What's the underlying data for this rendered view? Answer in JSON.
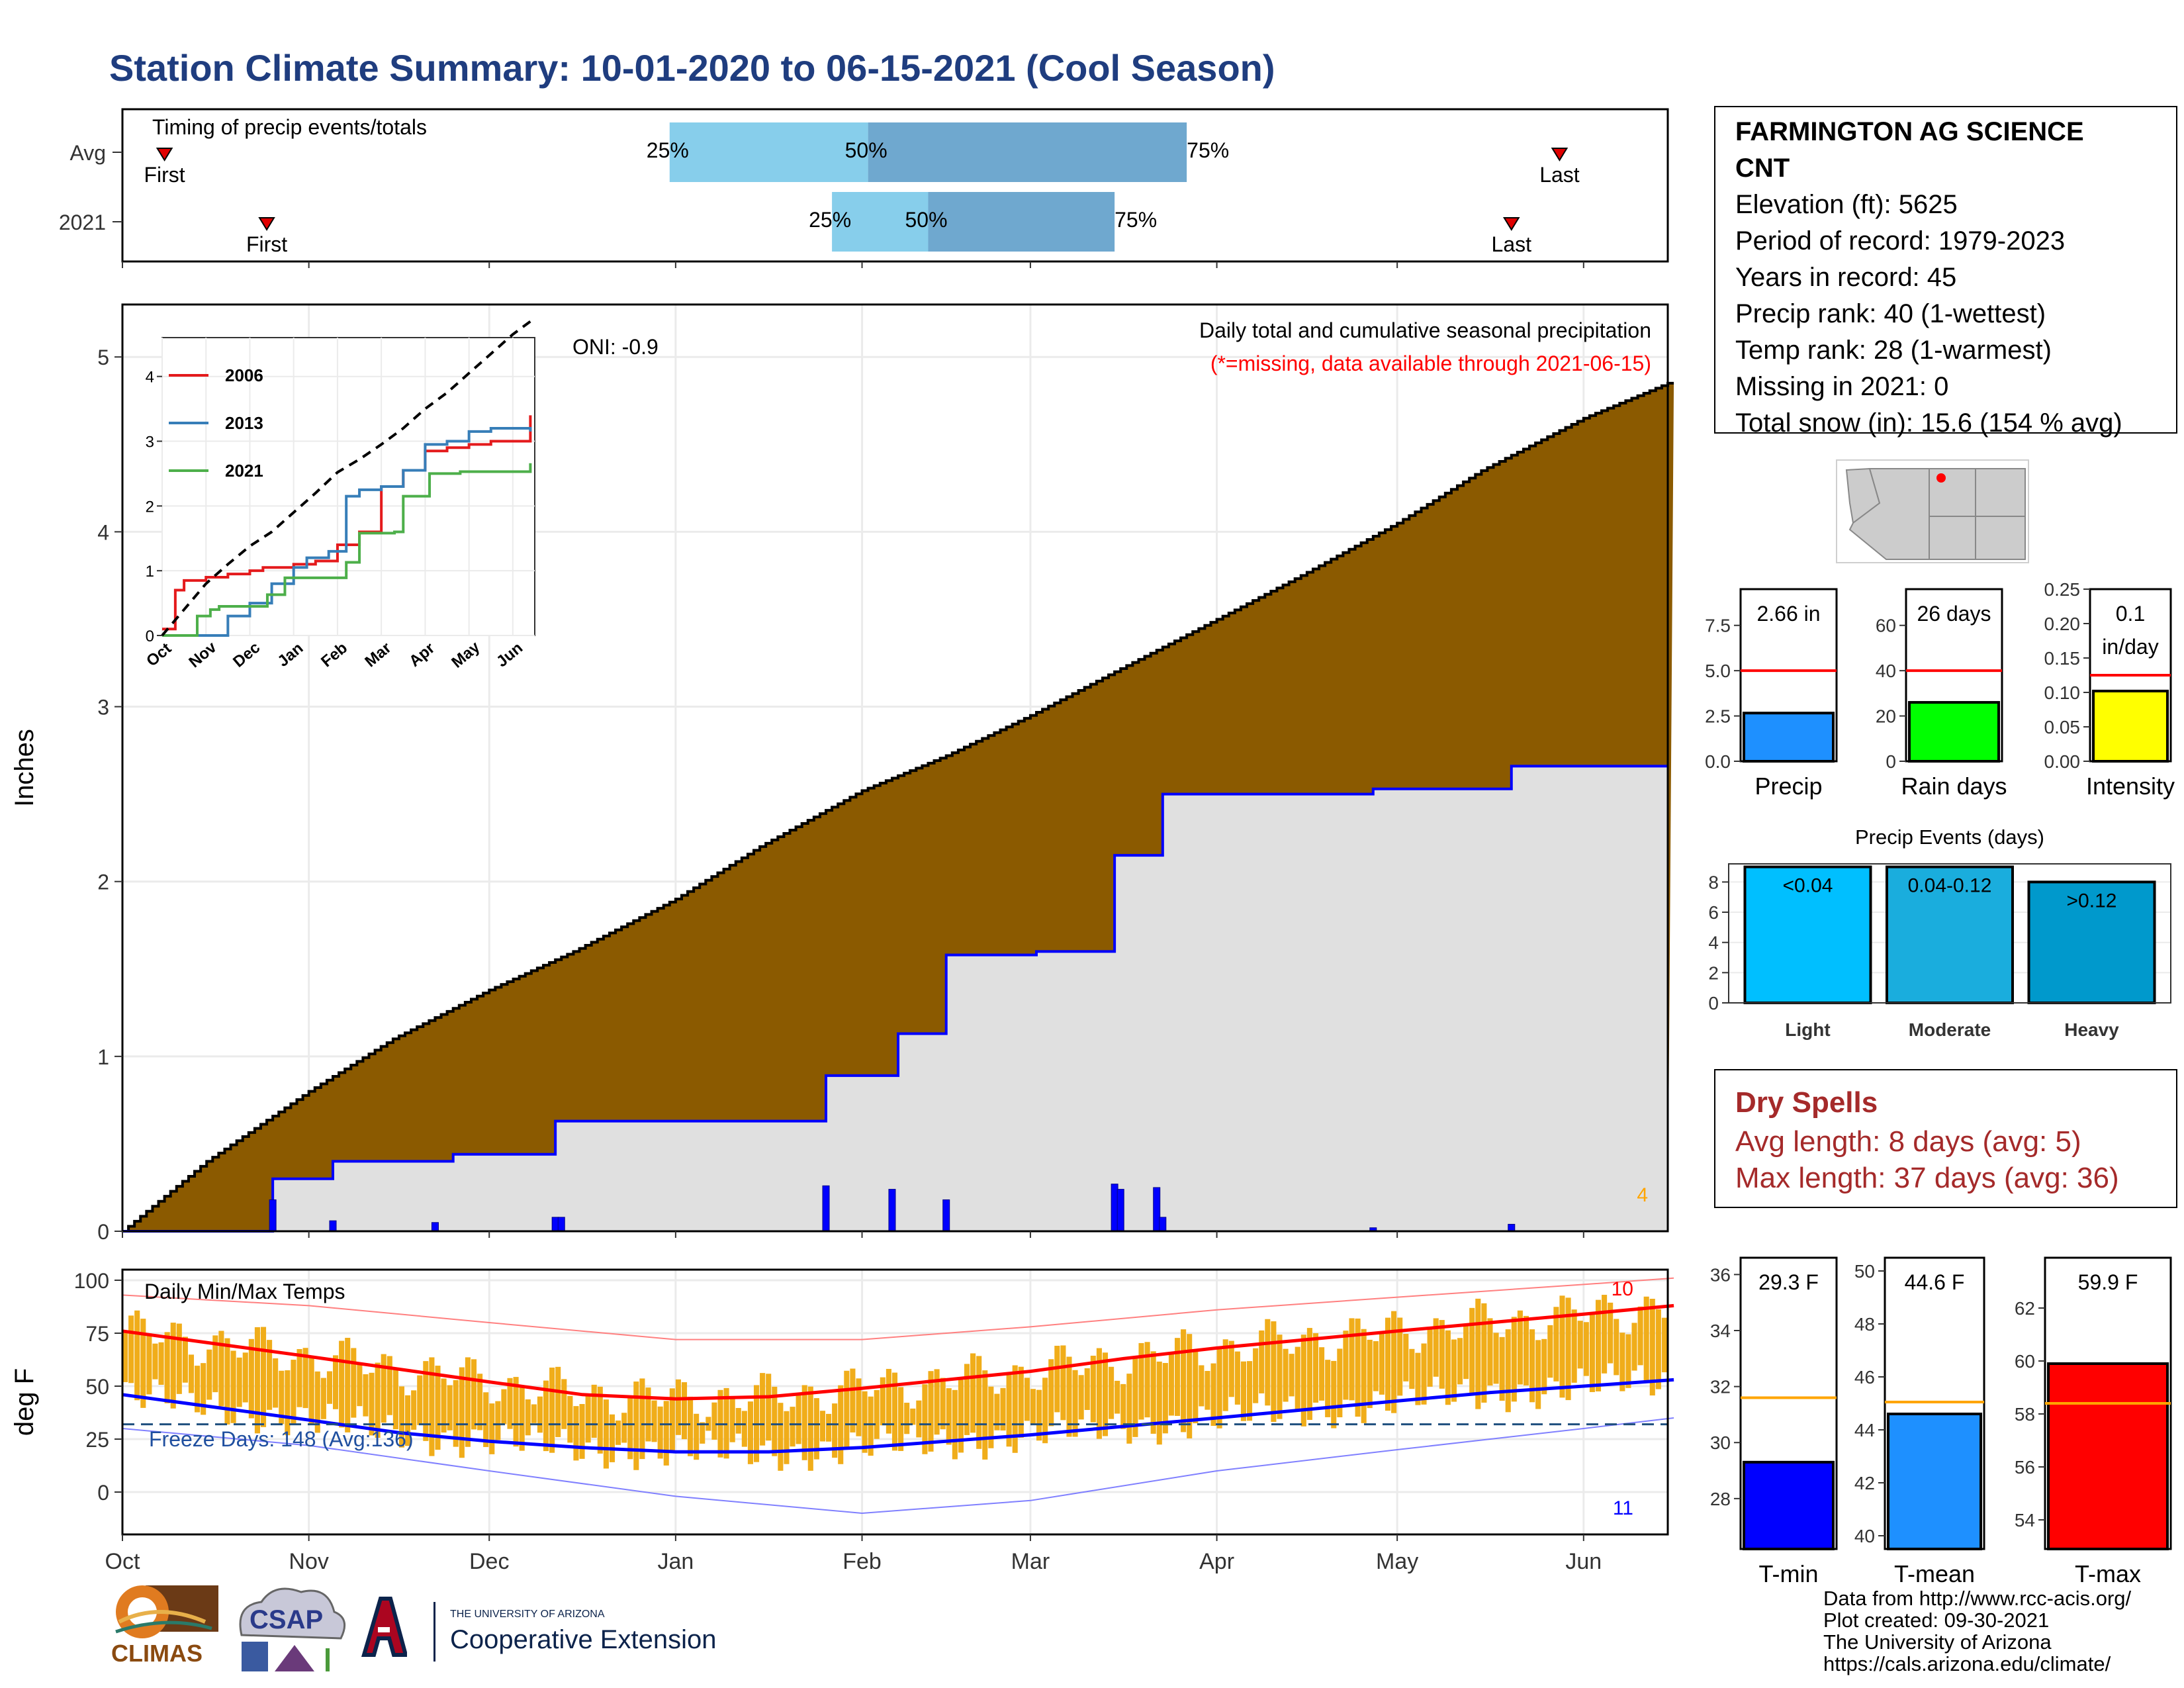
{
  "title": "Station Climate Summary: 10-01-2020 to 06-15-2021 (Cool Season)",
  "station": {
    "name_line1": "FARMINGTON AG SCIENCE",
    "name_line2": "CNT",
    "lines": [
      "Elevation (ft): 5625",
      "Period of record: 1979-2023",
      "Years in record: 45",
      "Precip rank: 40 (1-wettest)",
      "Temp rank: 28 (1-warmest)",
      "Missing in 2021: 0",
      "Total snow (in): 15.6 (154 % avg)"
    ]
  },
  "dry_spells": {
    "heading": "Dry Spells",
    "avg_length": "Avg length: 8 days (avg: 5)",
    "max_length": "Max length: 37 days (avg: 36)"
  },
  "credits": [
    "Data from http://www.rcc-acis.org/",
    "Plot created: 09-30-2021",
    "The University of Arizona",
    "https://cals.arizona.edu/climate/"
  ],
  "logos": {
    "climas": "CLIMAS",
    "csap": "CSAP",
    "ua_small": "THE UNIVERSITY OF ARIZONA",
    "ua_big": "Cooperative Extension"
  },
  "colors": {
    "title": "#1f3d7f",
    "avg_precip_fill": "#8b5a00",
    "season_precip_fill": "#e0e0e0",
    "season_line": "#0000ff",
    "quartile_light": "#87ceeb",
    "quartile_dark": "#6fa8cf",
    "dry_spells": "#a52a2a",
    "temp_bar": "#f0ad1a",
    "tmax_line": "#ff0000",
    "tmin_line": "#0000ff"
  },
  "chart_data": [
    {
      "type": "timeline",
      "title": "Timing of precip events/totals",
      "x_range": [
        "Oct",
        "Jun"
      ],
      "rows": [
        {
          "label": "Avg",
          "first": "First",
          "last": "Last",
          "first_date": "2020-10-08",
          "last_date": "2021-05-28",
          "q25": "2020-12-31",
          "q50": "2021-02-02",
          "q75": "2021-03-27",
          "q25_label": "25%",
          "q50_label": "50%",
          "q75_label": "75%"
        },
        {
          "label": "2021",
          "first": "First",
          "last": "Last",
          "first_date": "2020-10-25",
          "last_date": "2021-05-20",
          "q25": "2021-01-27",
          "q50": "2021-02-12",
          "q75": "2021-03-15",
          "q25_label": "25%",
          "q50_label": "50%",
          "q75_label": "75%"
        }
      ]
    },
    {
      "type": "area",
      "title": "Daily total and cumulative seasonal precipitation",
      "subtitle": "(*=missing, data available through 2021-06-15)",
      "annotation": "ONI: -0.9",
      "corner_label": "4",
      "ylabel": "Inches",
      "ylim": [
        0,
        5.3
      ],
      "y_ticks": [
        "0",
        "1",
        "2",
        "3",
        "4",
        "5"
      ],
      "x_ticks": [
        "Oct",
        "Nov",
        "Dec",
        "Jan",
        "Feb",
        "Mar",
        "Apr",
        "May",
        "Jun"
      ],
      "avg_cumulative": {
        "dates": [
          "2020-10-01",
          "2020-10-15",
          "2020-11-01",
          "2020-11-15",
          "2020-12-01",
          "2020-12-15",
          "2021-01-01",
          "2021-01-15",
          "2021-02-01",
          "2021-02-15",
          "2021-03-01",
          "2021-03-15",
          "2021-04-01",
          "2021-04-15",
          "2021-05-01",
          "2021-05-15",
          "2021-06-01",
          "2021-06-15"
        ],
        "values": [
          0,
          0.4,
          0.8,
          1.1,
          1.38,
          1.6,
          1.9,
          2.2,
          2.52,
          2.72,
          2.95,
          3.2,
          3.5,
          3.75,
          4.05,
          4.35,
          4.65,
          4.85
        ]
      },
      "season_cumulative": {
        "dates": [
          "2020-10-01",
          "2020-10-26",
          "2020-11-05",
          "2020-11-25",
          "2020-12-12",
          "2021-01-26",
          "2021-02-07",
          "2021-02-15",
          "2021-03-02",
          "2021-03-15",
          "2021-03-23",
          "2021-04-27",
          "2021-05-20",
          "2021-06-15"
        ],
        "values": [
          0,
          0.3,
          0.4,
          0.44,
          0.63,
          0.89,
          1.13,
          1.58,
          1.6,
          2.15,
          2.5,
          2.53,
          2.66,
          2.66
        ]
      },
      "daily_bars": {
        "dates": [
          "2020-10-26",
          "2020-11-05",
          "2020-11-22",
          "2020-12-12",
          "2020-12-13",
          "2021-01-26",
          "2021-02-06",
          "2021-02-15",
          "2021-03-15",
          "2021-03-16",
          "2021-03-22",
          "2021-03-23",
          "2021-04-27",
          "2021-05-20"
        ],
        "values": [
          0.18,
          0.06,
          0.05,
          0.08,
          0.08,
          0.26,
          0.24,
          0.18,
          0.27,
          0.24,
          0.25,
          0.08,
          0.02,
          0.04
        ]
      },
      "inset": {
        "type": "line",
        "ylim": [
          0,
          4.6
        ],
        "y_ticks": [
          "0",
          "1",
          "2",
          "3",
          "4"
        ],
        "x_ticks": [
          "Oct",
          "Nov",
          "Dec",
          "Jan",
          "Feb",
          "Mar",
          "Apr",
          "May",
          "Jun"
        ],
        "series": [
          {
            "name": "2006",
            "color": "#e41a1c",
            "months": [
              0,
              0.3,
              0.5,
              1,
              1.5,
              2,
              2.3,
              2.5,
              3,
              3.5,
              4,
              4.5,
              5,
              5.5,
              6,
              6.5,
              7,
              7.5,
              8.4
            ],
            "values": [
              0.1,
              0.7,
              0.85,
              0.9,
              0.95,
              1.0,
              1.05,
              1.05,
              1.1,
              1.15,
              1.4,
              1.6,
              2.3,
              2.55,
              2.85,
              2.9,
              2.95,
              3.0,
              3.4
            ]
          },
          {
            "name": "2013",
            "color": "#377eb8",
            "months": [
              0,
              1,
              1.5,
              2,
              2.5,
              3,
              3.3,
              3.8,
              4.2,
              4.5,
              5,
              5.5,
              6,
              6.5,
              7,
              7.5,
              8.4
            ],
            "values": [
              0,
              0,
              0.3,
              0.5,
              0.8,
              1.05,
              1.2,
              1.3,
              2.15,
              2.25,
              2.3,
              2.55,
              2.95,
              3.0,
              3.15,
              3.2,
              3.15
            ]
          },
          {
            "name": "2021",
            "color": "#4daf4a",
            "months": [
              0,
              0.8,
              1.1,
              1.3,
              2.4,
              2.8,
              3.2,
              4.2,
              4.5,
              5.3,
              5.5,
              6.1,
              6.8,
              8.4
            ],
            "values": [
              0,
              0.3,
              0.4,
              0.45,
              0.63,
              0.89,
              0.89,
              1.13,
              1.58,
              1.6,
              2.15,
              2.5,
              2.53,
              2.66
            ]
          }
        ],
        "average": {
          "months": [
            0,
            0.5,
            1,
            1.5,
            2,
            2.5,
            3,
            3.5,
            4,
            4.5,
            5,
            5.5,
            6,
            6.5,
            7,
            7.5,
            8,
            8.4
          ],
          "values": [
            0,
            0.4,
            0.8,
            1.1,
            1.38,
            1.6,
            1.9,
            2.2,
            2.52,
            2.72,
            2.95,
            3.2,
            3.5,
            3.75,
            4.05,
            4.35,
            4.65,
            4.85
          ]
        }
      }
    },
    {
      "type": "line",
      "title": "Daily Min/Max Temps",
      "ylabel": "deg F",
      "ylim": [
        -20,
        105
      ],
      "y_ticks": [
        "0",
        "25",
        "50",
        "75",
        "100"
      ],
      "x_ticks": [
        "Oct",
        "Nov",
        "Dec",
        "Jan",
        "Feb",
        "Mar",
        "Apr",
        "May",
        "Jun"
      ],
      "freeze_label": "Freeze Days: 148 (Avg:136)",
      "freeze_line": 32,
      "record_max_label": "10",
      "record_min_label": "11",
      "avg_tmax": {
        "months": [
          0,
          0.5,
          1,
          1.5,
          2,
          2.5,
          3,
          3.5,
          4,
          4.5,
          5,
          5.5,
          6,
          6.5,
          7,
          7.5,
          8,
          8.5
        ],
        "values": [
          76,
          70,
          64,
          58,
          52,
          46,
          44,
          45,
          49,
          53,
          57,
          63,
          68,
          72,
          76,
          80,
          84,
          88
        ]
      },
      "avg_tmin": {
        "months": [
          0,
          0.5,
          1,
          1.5,
          2,
          2.5,
          3,
          3.5,
          4,
          4.5,
          5,
          5.5,
          6,
          6.5,
          7,
          7.5,
          8,
          8.5
        ],
        "values": [
          46,
          40,
          34,
          28,
          24,
          21,
          19,
          19,
          21,
          24,
          27,
          31,
          35,
          39,
          43,
          47,
          50,
          53
        ]
      },
      "record_tmax": {
        "months": [
          0,
          1,
          2,
          3,
          4,
          5,
          6,
          7,
          8,
          8.5
        ],
        "values": [
          93,
          88,
          80,
          72,
          72,
          78,
          86,
          92,
          98,
          101
        ]
      },
      "record_tmin": {
        "months": [
          0,
          1,
          2,
          3,
          4,
          5,
          6,
          7,
          8,
          8.5
        ],
        "values": [
          30,
          22,
          10,
          -2,
          -10,
          -4,
          10,
          20,
          30,
          35
        ]
      }
    },
    {
      "type": "bar",
      "categories": [
        "Precip"
      ],
      "values": [
        2.66
      ],
      "avg": 5.0,
      "label": "2.66 in",
      "ylim": [
        0,
        9.5
      ],
      "y_ticks": [
        "0.0",
        "2.5",
        "5.0",
        "7.5"
      ],
      "color": "#1e90ff"
    },
    {
      "type": "bar",
      "categories": [
        "Rain days"
      ],
      "values": [
        26
      ],
      "avg": 40,
      "label": "26 days",
      "ylim": [
        0,
        76
      ],
      "y_ticks": [
        "0",
        "20",
        "40",
        "60"
      ],
      "color": "#00ff00"
    },
    {
      "type": "bar",
      "categories": [
        "Intensity"
      ],
      "values": [
        0.102
      ],
      "avg": 0.125,
      "label_line1": "0.1",
      "label_line2": "in/day",
      "ylim": [
        0,
        0.25
      ],
      "y_ticks": [
        "0.00",
        "0.05",
        "0.10",
        "0.15",
        "0.20",
        "0.25"
      ],
      "color": "#ffff00"
    },
    {
      "type": "bar",
      "title": "Precip Events (days)",
      "categories": [
        "Light",
        "Moderate",
        "Heavy"
      ],
      "values": [
        9,
        9,
        8
      ],
      "bar_labels": [
        "<0.04",
        "0.04-0.12",
        ">0.12"
      ],
      "colors": [
        "#00bfff",
        "#1aaddd",
        "#0099cc"
      ],
      "ylim": [
        0,
        9.2
      ],
      "y_ticks": [
        "0",
        "2",
        "4",
        "6",
        "8"
      ]
    },
    {
      "type": "bar",
      "categories": [
        "T-min"
      ],
      "values": [
        29.3
      ],
      "avg": 31.6,
      "label": "29.3 F",
      "ylim": [
        26.2,
        36.6
      ],
      "y_ticks": [
        "28",
        "30",
        "32",
        "34",
        "36"
      ],
      "color": "#0000ff"
    },
    {
      "type": "bar",
      "categories": [
        "T-mean"
      ],
      "values": [
        44.6
      ],
      "avg": 45.05,
      "label": "44.6 F",
      "ylim": [
        39.5,
        50.5
      ],
      "y_ticks": [
        "40",
        "42",
        "44",
        "46",
        "48",
        "50"
      ],
      "color": "#1e90ff"
    },
    {
      "type": "bar",
      "categories": [
        "T-max"
      ],
      "values": [
        59.9
      ],
      "avg": 58.4,
      "label": "59.9 F",
      "ylim": [
        52.9,
        63.9
      ],
      "y_ticks": [
        "54",
        "56",
        "58",
        "60",
        "62"
      ],
      "color": "#ff0000"
    }
  ]
}
